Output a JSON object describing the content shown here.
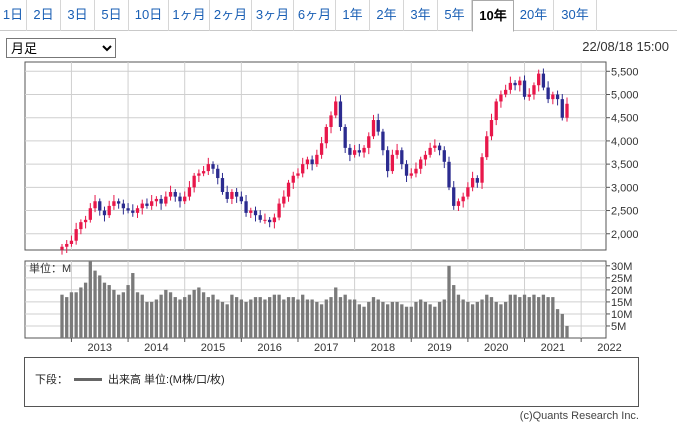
{
  "tabs": [
    {
      "label": "1日"
    },
    {
      "label": "2日"
    },
    {
      "label": "3日"
    },
    {
      "label": "5日"
    },
    {
      "label": "10日"
    },
    {
      "label": "1ヶ月"
    },
    {
      "label": "2ヶ月"
    },
    {
      "label": "3ヶ月"
    },
    {
      "label": "6ヶ月"
    },
    {
      "label": "1年"
    },
    {
      "label": "2年"
    },
    {
      "label": "3年"
    },
    {
      "label": "5年"
    },
    {
      "label": "10年",
      "active": true
    },
    {
      "label": "20年"
    },
    {
      "label": "30年"
    }
  ],
  "period_select": {
    "value": "月足"
  },
  "timestamp": "22/08/18 15:00",
  "legend": {
    "prefix": "下段：",
    "series_label": "出来高 単位:(M株/口/枚)"
  },
  "copyright": "(c)Quants Research Inc.",
  "colors": {
    "up": "#e8174a",
    "down": "#2b2b8f",
    "volume": "#7a7a7a",
    "grid": "#cfcfcf"
  },
  "chart_data": [
    {
      "type": "candlestick",
      "interval": "monthly",
      "x_tick_labels": [
        "2013",
        "2014",
        "2015",
        "2016",
        "2017",
        "2018",
        "2019",
        "2020",
        "2021",
        "2022"
      ],
      "y_tick_labels": [
        "2,000",
        "2,500",
        "3,000",
        "3,500",
        "4,000",
        "4,500",
        "5,000",
        "5,500"
      ],
      "ylim": [
        1650,
        5700
      ],
      "grid": true,
      "start_month": "2012-11",
      "close": [
        1720,
        1780,
        1850,
        2100,
        2250,
        2300,
        2550,
        2700,
        2500,
        2400,
        2600,
        2700,
        2650,
        2550,
        2500,
        2450,
        2550,
        2650,
        2600,
        2700,
        2750,
        2650,
        2800,
        2900,
        2800,
        2700,
        2800,
        3000,
        3250,
        3300,
        3350,
        3500,
        3400,
        3200,
        2900,
        2750,
        2900,
        2800,
        2700,
        2450,
        2500,
        2400,
        2300,
        2300,
        2250,
        2350,
        2650,
        2800,
        3100,
        3250,
        3300,
        3500,
        3600,
        3500,
        3700,
        3950,
        4300,
        4550,
        4850,
        4300,
        3850,
        3700,
        3800,
        3750,
        3850,
        4100,
        4450,
        4200,
        3800,
        3350,
        3700,
        3800,
        3500,
        3250,
        3300,
        3400,
        3600,
        3700,
        3850,
        3900,
        3800,
        3550,
        3000,
        2600,
        2700,
        2800,
        3000,
        3200,
        3100,
        3650,
        4100,
        4450,
        4850,
        5000,
        5100,
        5250,
        5200,
        5300,
        4950,
        5000,
        5200,
        5450,
        5150,
        4900,
        5000,
        4900,
        4500,
        4800
      ]
    },
    {
      "type": "bar",
      "series": "volume",
      "unit": "M",
      "y_tick_labels": [
        "5M",
        "10M",
        "15M",
        "20M",
        "25M",
        "30M"
      ],
      "ylim": [
        0,
        32
      ],
      "grid": true,
      "y_axis_label": "単位：M",
      "values": [
        18,
        17,
        19,
        19,
        21,
        23,
        32,
        28,
        26,
        23,
        22,
        20,
        18,
        19,
        22,
        27,
        19,
        18,
        15,
        15,
        16,
        18,
        20,
        19,
        17,
        16,
        17,
        18,
        20,
        21,
        19,
        17,
        18,
        16,
        15,
        14,
        18,
        17,
        16,
        15,
        16,
        17,
        17,
        16,
        17,
        18,
        18,
        16,
        17,
        17,
        16,
        18,
        16,
        16,
        15,
        14,
        16,
        17,
        21,
        17,
        18,
        16,
        16,
        14,
        13,
        15,
        17,
        16,
        15,
        14,
        15,
        15,
        14,
        13,
        13,
        15,
        16,
        15,
        14,
        13,
        15,
        16,
        30,
        22,
        18,
        16,
        15,
        14,
        15,
        16,
        18,
        17,
        15,
        14,
        15,
        18,
        18,
        17,
        18,
        17,
        18,
        17,
        18,
        17,
        17,
        12,
        10,
        5
      ]
    }
  ]
}
